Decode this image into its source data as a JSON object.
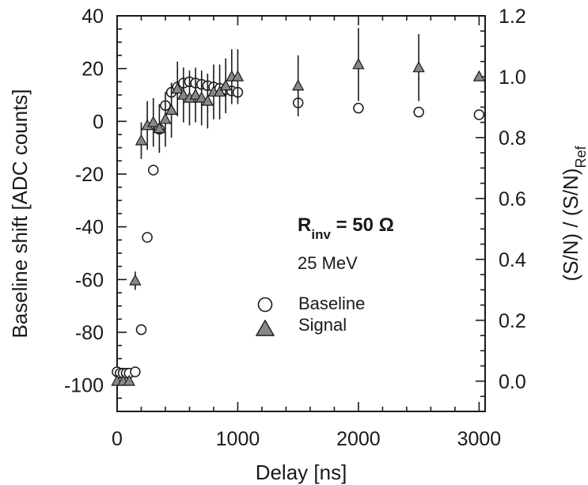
{
  "chart_data": {
    "type": "scatter",
    "xlabel": "Delay [ns]",
    "ylabel_left": "Baseline shift [ADC counts]",
    "ylabel_right_main": "(S/N) / (S/N)",
    "ylabel_right_sub": "Ref",
    "xlim": [
      0,
      3050
    ],
    "ylim_left": [
      -110,
      40
    ],
    "ylim_right": [
      -0.0994,
      1.2
    ],
    "x_ticks": [
      "0",
      "1000",
      "2000",
      "3000"
    ],
    "y_left_ticks": [
      "40",
      "20",
      "0",
      "-20",
      "-40",
      "-60",
      "-80",
      "-100"
    ],
    "y_right_ticks": [
      "1.2",
      "1.0",
      "0.8",
      "0.6",
      "0.4",
      "0.2",
      "0.0"
    ],
    "annotation": {
      "rinv_main": "R",
      "rinv_sub": "inv",
      "rinv_rest": " = 50 Ω",
      "energy": "25 MeV"
    },
    "legend": {
      "placement": "inside-lower-middle",
      "items": [
        {
          "label": "Baseline",
          "marker": "circle-open"
        },
        {
          "label": "Signal",
          "marker": "triangle-filled"
        }
      ]
    },
    "series": [
      {
        "name": "Baseline",
        "axis": "left",
        "marker": "circle-open",
        "color": "#1a1a1a",
        "points": [
          {
            "x": 0,
            "y": -95
          },
          {
            "x": 25,
            "y": -95.5
          },
          {
            "x": 50,
            "y": -95.5
          },
          {
            "x": 75,
            "y": -95.5
          },
          {
            "x": 100,
            "y": -95.5
          },
          {
            "x": 150,
            "y": -95
          },
          {
            "x": 200,
            "y": -79
          },
          {
            "x": 250,
            "y": -44
          },
          {
            "x": 300,
            "y": -18.5
          },
          {
            "x": 350,
            "y": -3
          },
          {
            "x": 400,
            "y": 6
          },
          {
            "x": 450,
            "y": 11
          },
          {
            "x": 500,
            "y": 13
          },
          {
            "x": 550,
            "y": 14.5
          },
          {
            "x": 600,
            "y": 15
          },
          {
            "x": 650,
            "y": 14.5
          },
          {
            "x": 700,
            "y": 14
          },
          {
            "x": 750,
            "y": 13.5
          },
          {
            "x": 800,
            "y": 13
          },
          {
            "x": 850,
            "y": 12.5
          },
          {
            "x": 900,
            "y": 12
          },
          {
            "x": 950,
            "y": 11.5
          },
          {
            "x": 1000,
            "y": 11
          },
          {
            "x": 1500,
            "y": 7
          },
          {
            "x": 2000,
            "y": 5
          },
          {
            "x": 2500,
            "y": 3.5
          },
          {
            "x": 3000,
            "y": 2.5
          }
        ]
      },
      {
        "name": "Signal",
        "axis": "right",
        "marker": "triangle-filled",
        "color": "#888888",
        "points": [
          {
            "x": 0,
            "y": 0.0,
            "err": 0.0
          },
          {
            "x": 50,
            "y": 0.0,
            "err": 0.0
          },
          {
            "x": 100,
            "y": 0.0,
            "err": 0.0
          },
          {
            "x": 150,
            "y": 0.33,
            "err": 0.03
          },
          {
            "x": 200,
            "y": 0.79,
            "err": 0.06
          },
          {
            "x": 250,
            "y": 0.84,
            "err": 0.08
          },
          {
            "x": 300,
            "y": 0.85,
            "err": 0.08
          },
          {
            "x": 350,
            "y": 0.83,
            "err": 0.08
          },
          {
            "x": 400,
            "y": 0.86,
            "err": 0.09
          },
          {
            "x": 450,
            "y": 0.89,
            "err": 0.09
          },
          {
            "x": 500,
            "y": 0.96,
            "err": 0.09
          },
          {
            "x": 550,
            "y": 0.94,
            "err": 0.09
          },
          {
            "x": 600,
            "y": 0.93,
            "err": 0.09
          },
          {
            "x": 650,
            "y": 0.94,
            "err": 0.09
          },
          {
            "x": 700,
            "y": 0.93,
            "err": 0.09
          },
          {
            "x": 750,
            "y": 0.92,
            "err": 0.09
          },
          {
            "x": 800,
            "y": 0.95,
            "err": 0.09
          },
          {
            "x": 850,
            "y": 0.95,
            "err": 0.09
          },
          {
            "x": 900,
            "y": 0.97,
            "err": 0.09
          },
          {
            "x": 950,
            "y": 1.0,
            "err": 0.09
          },
          {
            "x": 1000,
            "y": 1.0,
            "err": 0.09
          },
          {
            "x": 1500,
            "y": 0.97,
            "err": 0.1
          },
          {
            "x": 2000,
            "y": 1.04,
            "err": 0.12
          },
          {
            "x": 2500,
            "y": 1.03,
            "err": 0.11
          },
          {
            "x": 3000,
            "y": 1.0,
            "err": 0.0
          }
        ]
      }
    ]
  }
}
